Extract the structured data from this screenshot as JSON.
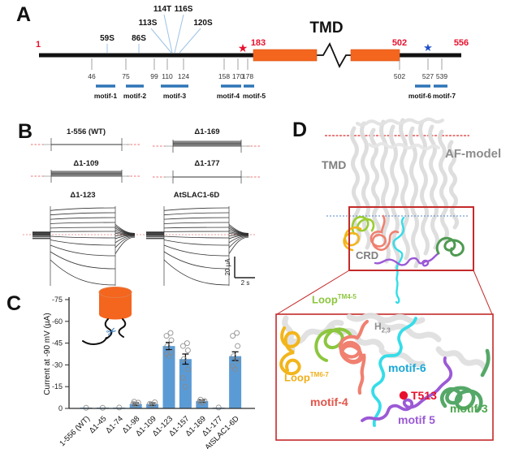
{
  "figure": {
    "panelA": {
      "label": "A",
      "tmd_title": "TMD",
      "n_term": "1",
      "cleavage_site": "183",
      "tmd_end": "502",
      "c_term": "556",
      "phospho_sites": [
        "59S",
        "86S",
        "113S",
        "114T",
        "116S",
        "120S"
      ],
      "residue_ticks": [
        "46",
        "75",
        "99",
        "110",
        "124",
        "158",
        "170",
        "178",
        "502",
        "527",
        "539"
      ],
      "motifs": [
        "motif-1",
        "motif-2",
        "motif-3",
        "motif-4",
        "motif-5",
        "motif-6",
        "motif-7"
      ],
      "icons": {
        "red_star": "★",
        "blue_star": "★"
      },
      "colors": {
        "domain_orange": "#F4651E",
        "motif_blue": "#2E75B6",
        "red": "#E8112D",
        "star_blue": "#2050C8"
      }
    },
    "panelB": {
      "label": "B",
      "trace_labels": [
        "1-556 (WT)",
        "Δ1-169",
        "Δ1-109",
        "Δ1-177",
        "Δ1-123",
        "AtSLAC1-6D"
      ],
      "scale_current": "20 µA",
      "scale_time": "2 s"
    },
    "panelC": {
      "label": "C",
      "icons": {
        "scissors": "✂"
      }
    },
    "panelD": {
      "label": "D",
      "model_label": "AF-model",
      "tmd_label": "TMD",
      "crd_label": "CRD",
      "labels": {
        "loop45": {
          "base": "Loop",
          "sup": "TM4-5"
        },
        "h23": {
          "base": "H",
          "sub": "2,3"
        },
        "loop67": {
          "base": "Loop",
          "sup": "TM6-7"
        },
        "motif4": "motif-4",
        "motif6": "motif-6",
        "t513": "T513",
        "motif5": "motif 5",
        "motif3": "motif-3"
      },
      "colors": {
        "box_red": "#C42A2A",
        "lime": "#8CC63E",
        "yellow": "#F2B51B",
        "salmon": "#F08070",
        "cyan": "#35DDE8",
        "purple": "#9B59D6",
        "green": "#55A868",
        "gray": "#8C8C8C"
      }
    }
  },
  "chart_data": {
    "type": "bar",
    "title": "",
    "categories": [
      "1-556 (WT)",
      "Δ1-45",
      "Δ1-74",
      "Δ1-98",
      "Δ1-109",
      "Δ1-123",
      "Δ1-157",
      "Δ1-169",
      "Δ1-177",
      "AtSLAC1-6D"
    ],
    "values": [
      -0.3,
      -0.3,
      -0.5,
      -3,
      -3,
      -43,
      -34,
      -5,
      -0.5,
      -36
    ],
    "errors": [
      0.2,
      0.2,
      0.3,
      0.8,
      0.8,
      2.5,
      3.5,
      0.8,
      0.2,
      3
    ],
    "points": [
      [
        -0.4
      ],
      [
        -0.4
      ],
      [
        -0.6
      ],
      [
        -2.5,
        -3.2,
        -4,
        -4.6
      ],
      [
        -2.6,
        -3.2,
        -4.2
      ],
      [
        -36,
        -37.5,
        -38.5,
        -43,
        -47,
        -50,
        -52
      ],
      [
        -15,
        -21,
        -27,
        -34,
        -40,
        -43,
        -45
      ],
      [
        -4,
        -4.6,
        -5.2,
        -6
      ],
      [
        -0.6
      ],
      [
        -27,
        -29,
        -33,
        -36,
        -43,
        -50,
        -52
      ]
    ],
    "ylabel": "Current at -90 mV (µA)",
    "ytick_labels": [
      "0",
      "-15",
      "-30",
      "-45",
      "-60",
      "-75"
    ],
    "ylim": [
      0,
      -75
    ],
    "grid": false,
    "legend": "none",
    "bar_color": "#5B9BD5"
  }
}
